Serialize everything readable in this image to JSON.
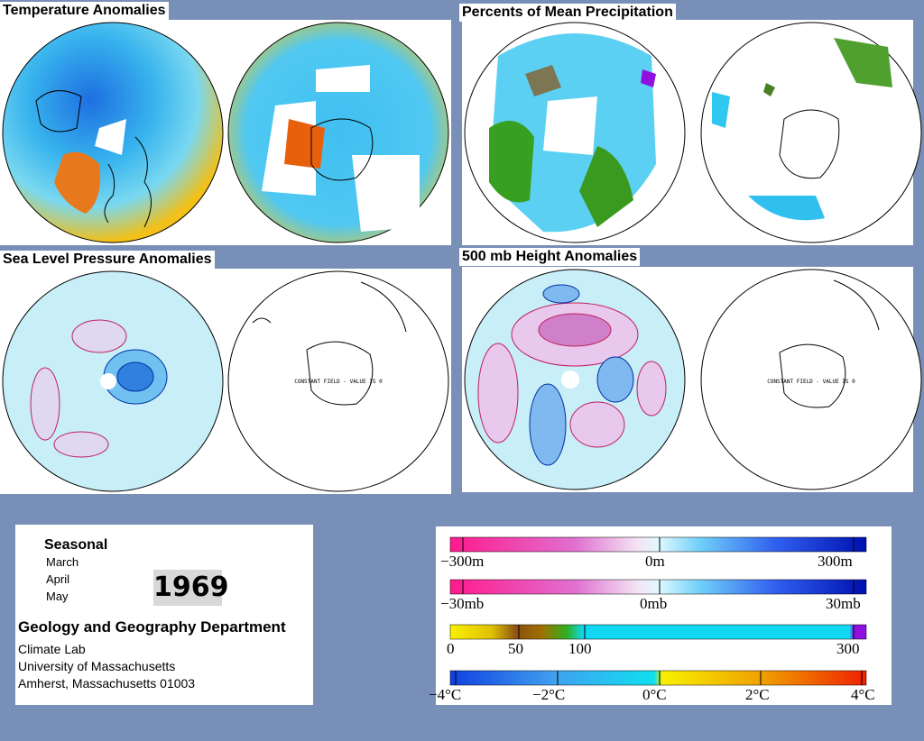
{
  "panels": {
    "temp": {
      "title": "Temperature Anomalies"
    },
    "precip": {
      "title": "Percents of Mean Precipitation"
    },
    "slp": {
      "title": "Sea Level Pressure Anomalies",
      "south_label": "CONSTANT FIELD - VALUE IS 0"
    },
    "height": {
      "title": "500 mb Height Anomalies",
      "south_label": "CONSTANT FIELD - VALUE IS 0"
    }
  },
  "info": {
    "period": "Seasonal",
    "months": [
      "March",
      "April",
      "May"
    ],
    "year": "1969",
    "department": "Geology and Geography Department",
    "address": [
      "Climate Lab",
      "University of Massachusetts",
      "Amherst, Massachusetts 01003"
    ]
  },
  "legend": {
    "height_scale": {
      "labels": [
        "−300m",
        "0m",
        "300m"
      ]
    },
    "pressure_scale": {
      "labels": [
        "−30mb",
        "0mb",
        "30mb"
      ]
    },
    "precip_scale": {
      "labels": [
        "0",
        "50",
        "100",
        "300"
      ]
    },
    "temp_scale": {
      "labels": [
        "−4°C",
        "−2°C",
        "0°C",
        "2°C",
        "4°C"
      ]
    }
  },
  "colors": {
    "background": "#7890b8",
    "cold": "#1060e0",
    "warm": "#f0b000",
    "wet": "#00c8ff",
    "dry": "#7a4a10",
    "positive_contour": "#c02060",
    "negative_contour": "#0030a0"
  }
}
